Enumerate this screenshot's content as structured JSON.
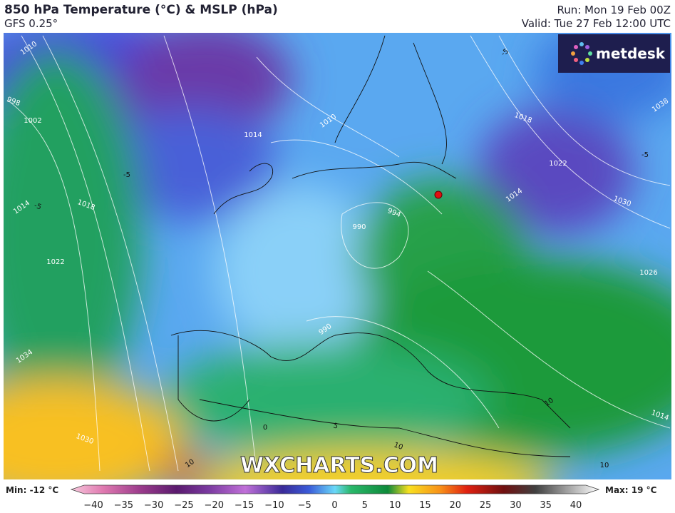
{
  "header": {
    "title": "850 hPa Temperature (°C) & MSLP (hPa)",
    "model": "GFS 0.25°",
    "run": "Run: Mon 19 Feb 00Z",
    "valid": "Valid: Tue 27 Feb 12:00 UTC"
  },
  "logo": "metdesk",
  "watermark": "WXCHARTS.COM",
  "map_labels": [
    "1010",
    "998",
    "1002",
    "1014",
    "1018",
    "1022",
    "1034",
    "1030",
    "1014",
    "1010",
    "994",
    "990",
    "990",
    "1018",
    "1022",
    "1014",
    "1030",
    "1026",
    "1038",
    "1014",
    "-5",
    "-5",
    "-5",
    "-5",
    "10",
    "10",
    "10",
    "10",
    "5",
    "0"
  ],
  "colorbar": {
    "min": "Min: -12 °C",
    "max": "Max: 19 °C",
    "ticks": [
      "−40",
      "−35",
      "−30",
      "−25",
      "−20",
      "−15",
      "−10",
      "−5",
      "0",
      "5",
      "10",
      "15",
      "20",
      "25",
      "30",
      "35",
      "40"
    ]
  }
}
